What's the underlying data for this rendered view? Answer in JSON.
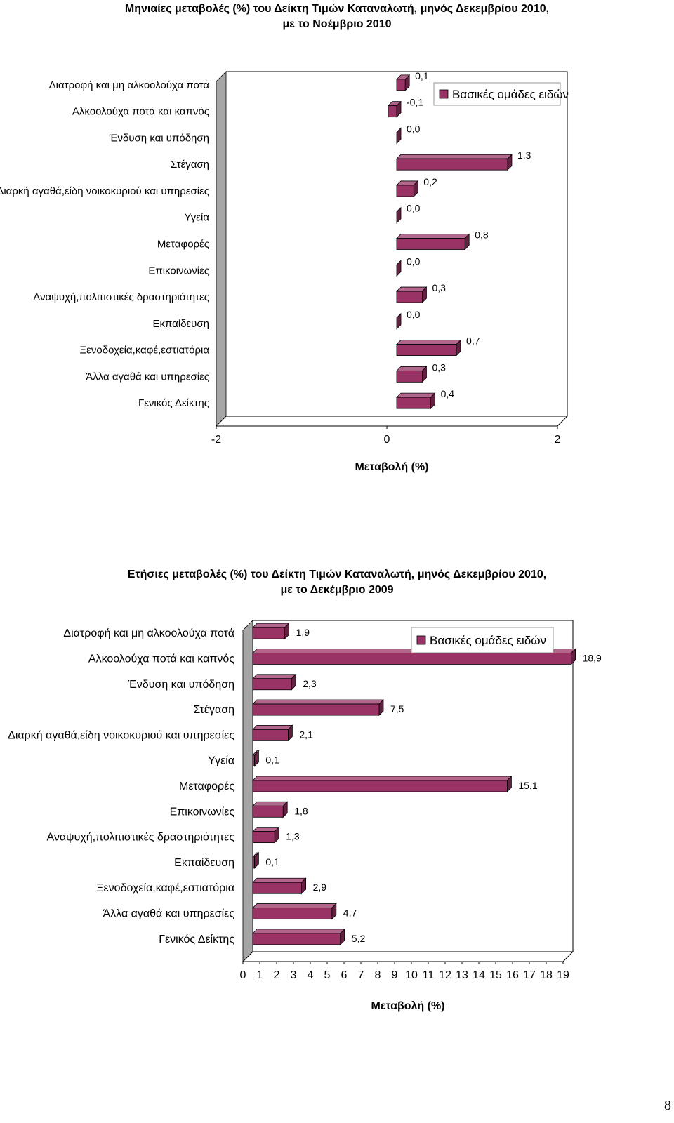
{
  "chart_data": [
    {
      "type": "bar",
      "orientation": "horizontal",
      "title": [
        "Μηνιαίες μεταβολές (%) του Δείκτη Τιμών Καταναλωτή, μηνός Δεκεμβρίου 2010,",
        "με το Νοέμβριο 2010"
      ],
      "categories": [
        "Διατροφή και μη αλκοολούχα ποτά",
        "Αλκοολούχα ποτά και καπνός",
        "Ένδυση και υπόδηση",
        "Στέγαση",
        "Διαρκή αγαθά,είδη νοικοκυριού και υπηρεσίες",
        "Υγεία",
        "Μεταφορές",
        "Επικοινωνίες",
        "Αναψυχή,πολιτιστικές δραστηριότητες",
        "Εκπαίδευση",
        "Ξενοδοχεία,καφέ,εστιατόρια",
        "Άλλα αγαθά και υπηρεσίες",
        "Γενικός Δείκτης"
      ],
      "series": [
        {
          "name": "Βασικές ομάδες ειδών",
          "values": [
            0.1,
            -0.1,
            0.0,
            1.3,
            0.2,
            0.0,
            0.8,
            0.0,
            0.3,
            0.0,
            0.7,
            0.3,
            0.4
          ],
          "labels": [
            "0,1",
            "-0,1",
            "0,0",
            "1,3",
            "0,2",
            "0,0",
            "0,8",
            "0,0",
            "0,3",
            "0,0",
            "0,7",
            "0,3",
            "0,4"
          ]
        }
      ],
      "xlim": [
        -2,
        2
      ],
      "x_ticks": [
        "-2",
        "0",
        "2"
      ],
      "xlabel": "Μεταβολή (%)",
      "legend": "top-right",
      "bar_color": "#993366",
      "grid": false
    },
    {
      "type": "bar",
      "orientation": "horizontal",
      "title": [
        "Ετήσιες μεταβολές (%) του  Δείκτη Τιμών Καταναλωτή, μηνός Δεκεμβρίου 2010,",
        "με το Δεκέμβριο  2009"
      ],
      "categories": [
        "Διατροφή και μη αλκοολούχα ποτά",
        "Αλκοολούχα ποτά και καπνός",
        "Ένδυση και υπόδηση",
        "Στέγαση",
        "Διαρκή αγαθά,είδη νοικοκυριού και υπηρεσίες",
        "Υγεία",
        "Μεταφορές",
        "Επικοινωνίες",
        "Αναψυχή,πολιτιστικές δραστηριότητες",
        "Εκπαίδευση",
        "Ξενοδοχεία,καφέ,εστιατόρια",
        "Άλλα αγαθά και υπηρεσίες",
        "Γενικός Δείκτης"
      ],
      "series": [
        {
          "name": "Βασικές ομάδες ειδών",
          "values": [
            1.9,
            18.9,
            2.3,
            7.5,
            2.1,
            0.1,
            15.1,
            1.8,
            1.3,
            0.1,
            2.9,
            4.7,
            5.2
          ],
          "labels": [
            "1,9",
            "18,9",
            "2,3",
            "7,5",
            "2,1",
            "0,1",
            "15,1",
            "1,8",
            "1,3",
            "0,1",
            "2,9",
            "4,7",
            "5,2"
          ]
        }
      ],
      "xlim": [
        0,
        19
      ],
      "x_ticks": [
        "0",
        "1",
        "2",
        "3",
        "4",
        "5",
        "6",
        "7",
        "8",
        "9",
        "10",
        "11",
        "12",
        "13",
        "14",
        "15",
        "16",
        "17",
        "18",
        "19"
      ],
      "xlabel": "Μεταβολή (%)",
      "legend": "top-right",
      "bar_color": "#993366",
      "grid": false
    }
  ],
  "page_number": "8"
}
